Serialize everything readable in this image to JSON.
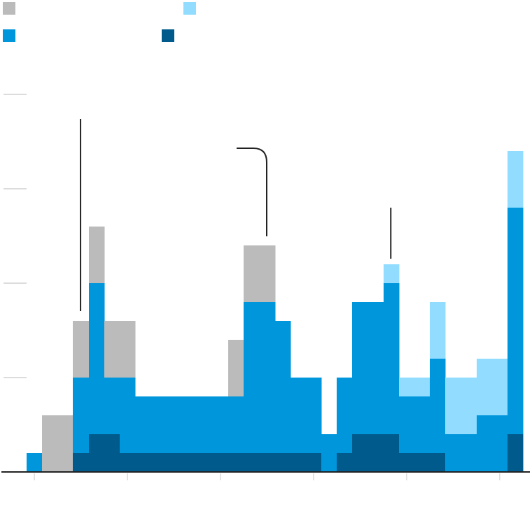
{
  "chart_data": {
    "type": "bar",
    "stacked": true,
    "title": "",
    "xlabel": "",
    "ylabel": "",
    "ylim": [
      0,
      20
    ],
    "grid": true,
    "legend_placement": "top-left",
    "x": [
      0,
      1,
      2,
      3,
      4,
      5,
      6,
      7,
      8,
      9,
      10,
      11,
      12,
      13,
      14,
      15,
      16,
      17,
      18,
      19,
      20,
      21,
      22,
      23,
      24,
      25,
      26,
      27,
      28,
      29,
      30,
      31
    ],
    "series": [
      {
        "color": "#005a8c",
        "values": [
          0,
          0,
          0,
          1,
          2,
          2,
          1,
          1,
          1,
          1,
          1,
          1,
          1,
          1,
          1,
          1,
          1,
          1,
          1,
          0,
          1,
          2,
          2,
          2,
          1,
          1,
          1,
          0,
          0,
          0,
          0,
          2
        ]
      },
      {
        "color": "#0096dc",
        "values": [
          1,
          0,
          0,
          4,
          8,
          3,
          4,
          3,
          3,
          3,
          3,
          3,
          3,
          3,
          8,
          8,
          7,
          4,
          4,
          2,
          4,
          7,
          7,
          8,
          3,
          3,
          5,
          2,
          2,
          3,
          3,
          12
        ]
      },
      {
        "color": "#91dcff",
        "values": [
          0,
          0,
          0,
          0,
          0,
          0,
          0,
          0,
          0,
          0,
          0,
          0,
          0,
          0,
          0,
          0,
          0,
          0,
          0,
          0,
          0,
          0,
          0,
          1,
          1,
          1,
          3,
          3,
          3,
          3,
          3,
          3
        ]
      },
      {
        "color": "#bbbbbb",
        "values": [
          0,
          3,
          3,
          3,
          3,
          3,
          3,
          0,
          0,
          0,
          0,
          0,
          0,
          3,
          3,
          3,
          0,
          0,
          0,
          0,
          0,
          0,
          0,
          0,
          0,
          0,
          0,
          0,
          0,
          0,
          0,
          0
        ]
      }
    ],
    "legend": [
      {
        "color": "#bbbbbb"
      },
      {
        "color": "#91dcff"
      },
      {
        "color": "#0096dc"
      },
      {
        "color": "#005a8c"
      }
    ],
    "annotation_pointers": [
      3,
      14.5,
      23
    ]
  }
}
